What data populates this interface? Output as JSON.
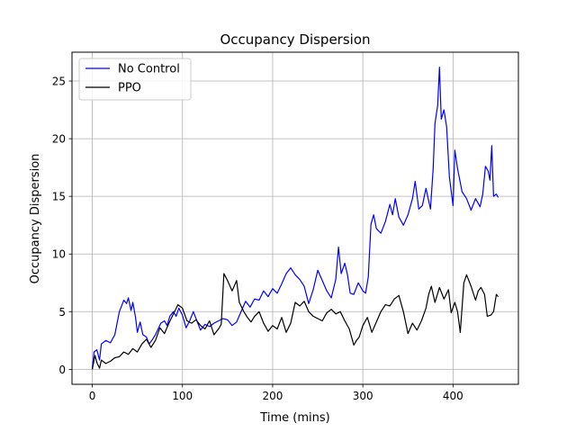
{
  "chart_data": {
    "type": "line",
    "title": "Occupancy Dispersion",
    "xlabel": "Time (mins)",
    "ylabel": "Occupancy Dispersion",
    "xlim": [
      -22.5,
      472.5
    ],
    "ylim": [
      -1.3,
      27.5
    ],
    "xticks": [
      0,
      100,
      200,
      300,
      400
    ],
    "yticks": [
      0,
      5,
      10,
      15,
      20,
      25
    ],
    "xtick_labels": [
      "0",
      "100",
      "200",
      "300",
      "400"
    ],
    "ytick_labels": [
      "0",
      "5",
      "10",
      "15",
      "20",
      "25"
    ],
    "grid": true,
    "legend_position": "upper-left",
    "series": [
      {
        "name": "No Control",
        "color": "#0000ff",
        "points": [
          [
            0,
            0
          ],
          [
            2,
            1.5
          ],
          [
            5,
            1.7
          ],
          [
            8,
            0.8
          ],
          [
            10,
            2.2
          ],
          [
            15,
            2.5
          ],
          [
            20,
            2.3
          ],
          [
            25,
            3.0
          ],
          [
            30,
            5.0
          ],
          [
            35,
            6.0
          ],
          [
            38,
            5.7
          ],
          [
            40,
            6.2
          ],
          [
            43,
            5.1
          ],
          [
            45,
            5.8
          ],
          [
            48,
            4.5
          ],
          [
            50,
            3.2
          ],
          [
            53,
            4.1
          ],
          [
            56,
            3.0
          ],
          [
            60,
            2.8
          ],
          [
            63,
            2.2
          ],
          [
            66,
            2.5
          ],
          [
            70,
            3.0
          ],
          [
            73,
            3.5
          ],
          [
            76,
            4.0
          ],
          [
            80,
            4.2
          ],
          [
            83,
            3.8
          ],
          [
            86,
            4.6
          ],
          [
            90,
            5.0
          ],
          [
            93,
            4.6
          ],
          [
            96,
            5.3
          ],
          [
            100,
            4.7
          ],
          [
            104,
            3.6
          ],
          [
            108,
            4.2
          ],
          [
            112,
            5.0
          ],
          [
            116,
            4.2
          ],
          [
            120,
            3.4
          ],
          [
            125,
            3.9
          ],
          [
            130,
            3.7
          ],
          [
            135,
            4.0
          ],
          [
            140,
            4.2
          ],
          [
            145,
            4.4
          ],
          [
            150,
            4.3
          ],
          [
            155,
            3.8
          ],
          [
            160,
            4.1
          ],
          [
            165,
            5.0
          ],
          [
            170,
            5.9
          ],
          [
            175,
            5.4
          ],
          [
            180,
            6.1
          ],
          [
            185,
            6.0
          ],
          [
            190,
            6.8
          ],
          [
            195,
            6.3
          ],
          [
            200,
            7.0
          ],
          [
            205,
            6.6
          ],
          [
            210,
            7.4
          ],
          [
            215,
            8.3
          ],
          [
            220,
            8.8
          ],
          [
            225,
            8.2
          ],
          [
            230,
            7.8
          ],
          [
            235,
            7.2
          ],
          [
            240,
            5.7
          ],
          [
            245,
            6.9
          ],
          [
            250,
            8.6
          ],
          [
            255,
            7.7
          ],
          [
            260,
            6.8
          ],
          [
            265,
            6.2
          ],
          [
            270,
            7.8
          ],
          [
            273,
            10.6
          ],
          [
            276,
            8.3
          ],
          [
            280,
            9.2
          ],
          [
            283,
            8.2
          ],
          [
            286,
            6.6
          ],
          [
            290,
            6.5
          ],
          [
            295,
            7.5
          ],
          [
            300,
            6.8
          ],
          [
            303,
            6.6
          ],
          [
            306,
            8.0
          ],
          [
            309,
            12.6
          ],
          [
            312,
            13.4
          ],
          [
            315,
            12.2
          ],
          [
            320,
            11.8
          ],
          [
            325,
            12.8
          ],
          [
            330,
            14.3
          ],
          [
            333,
            13.4
          ],
          [
            336,
            14.8
          ],
          [
            340,
            13.2
          ],
          [
            345,
            12.5
          ],
          [
            350,
            13.4
          ],
          [
            355,
            14.8
          ],
          [
            358,
            16.3
          ],
          [
            362,
            13.9
          ],
          [
            366,
            14.2
          ],
          [
            370,
            15.7
          ],
          [
            375,
            13.9
          ],
          [
            378,
            17.4
          ],
          [
            380,
            21.3
          ],
          [
            383,
            22.9
          ],
          [
            385,
            26.2
          ],
          [
            387,
            21.7
          ],
          [
            390,
            22.5
          ],
          [
            393,
            21.0
          ],
          [
            396,
            16.7
          ],
          [
            400,
            14.2
          ],
          [
            402,
            19.0
          ],
          [
            405,
            17.4
          ],
          [
            410,
            15.4
          ],
          [
            415,
            14.8
          ],
          [
            420,
            13.8
          ],
          [
            425,
            14.8
          ],
          [
            430,
            14.1
          ],
          [
            433,
            15.2
          ],
          [
            436,
            17.6
          ],
          [
            439,
            17.2
          ],
          [
            441,
            16.4
          ],
          [
            443,
            19.4
          ],
          [
            445,
            15.0
          ],
          [
            448,
            15.2
          ],
          [
            450,
            14.9
          ]
        ]
      },
      {
        "name": "PPO",
        "color": "#000000",
        "points": [
          [
            0,
            0
          ],
          [
            3,
            1.2
          ],
          [
            5,
            0.6
          ],
          [
            8,
            0.1
          ],
          [
            10,
            0.8
          ],
          [
            15,
            0.5
          ],
          [
            20,
            0.7
          ],
          [
            25,
            1.0
          ],
          [
            30,
            1.1
          ],
          [
            35,
            1.5
          ],
          [
            40,
            1.3
          ],
          [
            45,
            1.8
          ],
          [
            50,
            1.5
          ],
          [
            55,
            2.2
          ],
          [
            60,
            2.6
          ],
          [
            65,
            1.9
          ],
          [
            70,
            2.5
          ],
          [
            75,
            3.6
          ],
          [
            80,
            3.1
          ],
          [
            85,
            4.0
          ],
          [
            90,
            4.8
          ],
          [
            95,
            5.6
          ],
          [
            100,
            5.3
          ],
          [
            105,
            4.2
          ],
          [
            110,
            4.0
          ],
          [
            115,
            4.3
          ],
          [
            120,
            3.8
          ],
          [
            125,
            3.5
          ],
          [
            130,
            4.2
          ],
          [
            135,
            3.0
          ],
          [
            140,
            3.5
          ],
          [
            143,
            3.9
          ],
          [
            146,
            8.3
          ],
          [
            150,
            7.7
          ],
          [
            155,
            6.8
          ],
          [
            160,
            7.7
          ],
          [
            163,
            5.8
          ],
          [
            168,
            5.0
          ],
          [
            172,
            4.5
          ],
          [
            176,
            4.1
          ],
          [
            180,
            4.6
          ],
          [
            185,
            5.0
          ],
          [
            190,
            4.0
          ],
          [
            195,
            3.3
          ],
          [
            200,
            3.8
          ],
          [
            205,
            3.5
          ],
          [
            210,
            4.5
          ],
          [
            215,
            3.2
          ],
          [
            220,
            4.0
          ],
          [
            225,
            5.8
          ],
          [
            230,
            5.5
          ],
          [
            235,
            5.9
          ],
          [
            240,
            5.0
          ],
          [
            245,
            4.6
          ],
          [
            250,
            4.4
          ],
          [
            255,
            4.2
          ],
          [
            260,
            4.9
          ],
          [
            265,
            5.2
          ],
          [
            270,
            4.8
          ],
          [
            275,
            5.0
          ],
          [
            280,
            4.2
          ],
          [
            285,
            3.5
          ],
          [
            290,
            2.1
          ],
          [
            293,
            2.5
          ],
          [
            296,
            2.8
          ],
          [
            300,
            3.8
          ],
          [
            305,
            4.5
          ],
          [
            310,
            3.2
          ],
          [
            315,
            4.1
          ],
          [
            320,
            5.0
          ],
          [
            325,
            5.6
          ],
          [
            330,
            5.5
          ],
          [
            335,
            6.1
          ],
          [
            340,
            6.4
          ],
          [
            345,
            5.0
          ],
          [
            350,
            3.1
          ],
          [
            355,
            4.0
          ],
          [
            360,
            3.4
          ],
          [
            365,
            4.2
          ],
          [
            370,
            5.3
          ],
          [
            373,
            6.5
          ],
          [
            376,
            7.2
          ],
          [
            380,
            5.8
          ],
          [
            385,
            7.1
          ],
          [
            390,
            6.1
          ],
          [
            395,
            6.9
          ],
          [
            398,
            4.9
          ],
          [
            402,
            5.8
          ],
          [
            405,
            5.0
          ],
          [
            408,
            3.2
          ],
          [
            412,
            7.5
          ],
          [
            415,
            8.2
          ],
          [
            420,
            7.2
          ],
          [
            425,
            6.0
          ],
          [
            428,
            6.8
          ],
          [
            431,
            7.1
          ],
          [
            435,
            6.5
          ],
          [
            438,
            4.6
          ],
          [
            442,
            4.7
          ],
          [
            445,
            5.0
          ],
          [
            448,
            6.5
          ],
          [
            450,
            6.3
          ]
        ]
      }
    ]
  }
}
